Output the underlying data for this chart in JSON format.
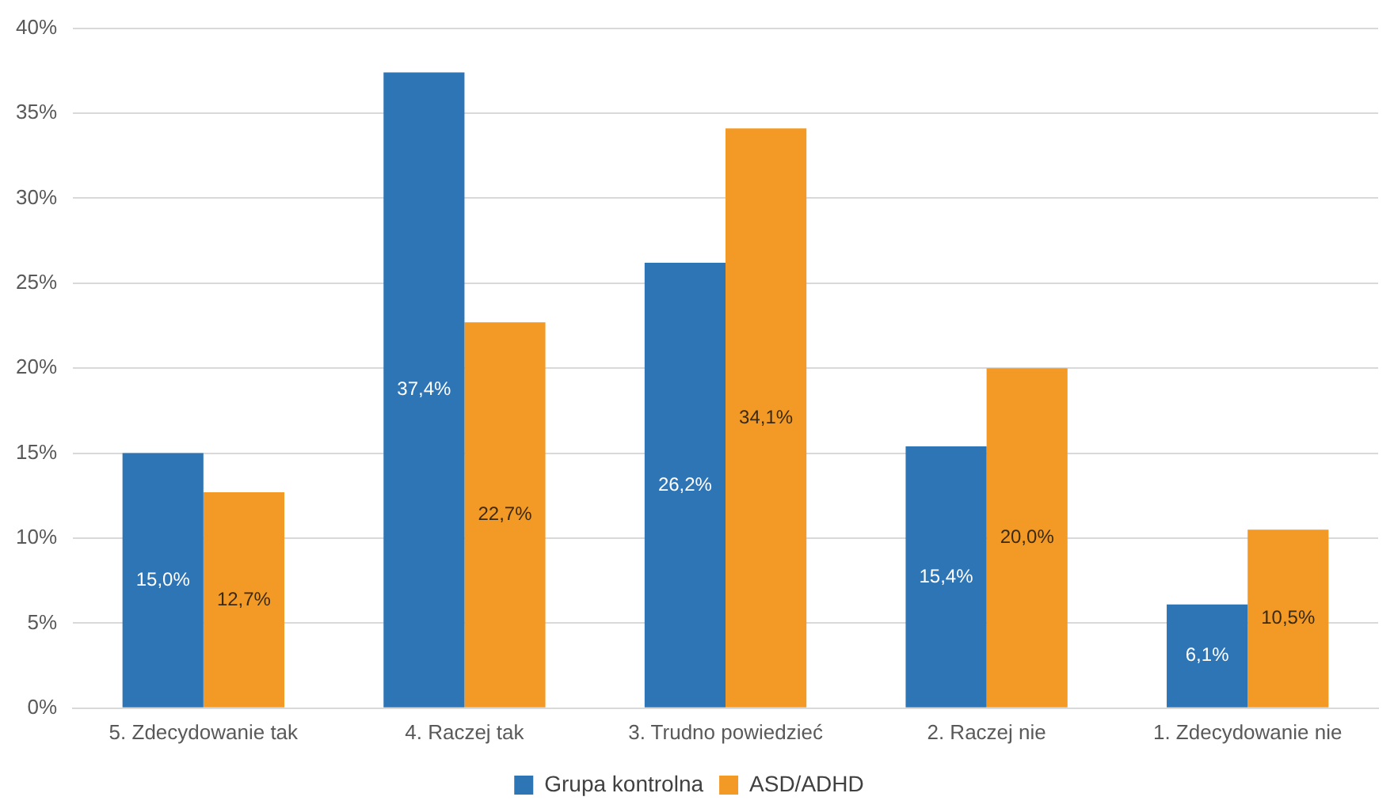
{
  "chart_data": {
    "type": "bar",
    "categories": [
      "5. Zdecydowanie tak",
      "4. Raczej tak",
      "3. Trudno powiedzieć",
      "2. Raczej nie",
      "1. Zdecydowanie nie"
    ],
    "series": [
      {
        "name": "Grupa kontrolna",
        "color": "#2e75b6",
        "values": [
          15.0,
          37.4,
          26.2,
          15.4,
          6.1
        ],
        "value_labels": [
          "15,0%",
          "37,4%",
          "26,2%",
          "15,4%",
          "6,1%"
        ]
      },
      {
        "name": "ASD/ADHD",
        "color": "#f39a26",
        "values": [
          12.7,
          22.7,
          34.1,
          20.0,
          10.5
        ],
        "value_labels": [
          "12,7%",
          "22,7%",
          "34,1%",
          "20,0%",
          "10,5%"
        ]
      }
    ],
    "ylim": [
      0,
      40
    ],
    "yticks": [
      {
        "value": 0,
        "label": "0%"
      },
      {
        "value": 5,
        "label": "5%"
      },
      {
        "value": 10,
        "label": "10%"
      },
      {
        "value": 15,
        "label": "15%"
      },
      {
        "value": 20,
        "label": "20%"
      },
      {
        "value": 25,
        "label": "25%"
      },
      {
        "value": 30,
        "label": "30%"
      },
      {
        "value": 35,
        "label": "35%"
      },
      {
        "value": 40,
        "label": "40%"
      }
    ],
    "grid": "y",
    "legend": "bottom"
  }
}
